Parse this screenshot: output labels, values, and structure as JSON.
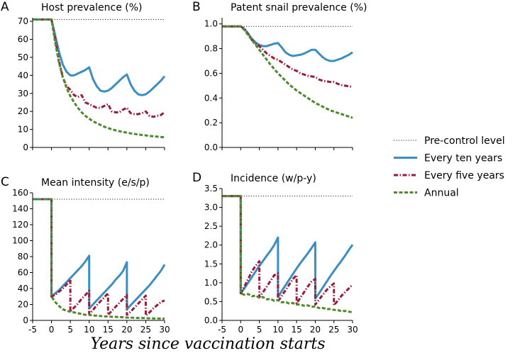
{
  "figure": {
    "xlabel": "Years since vaccination starts",
    "legend": [
      {
        "label": "Pre-control level",
        "style": "dotted",
        "color": "#222222"
      },
      {
        "label": "Every ten years",
        "style": "solid",
        "color": "#3a8fc2"
      },
      {
        "label": "Every five years",
        "style": "dashdot",
        "color": "#9b1b3c"
      },
      {
        "label": "Annual",
        "style": "dashed",
        "color": "#4f8a2a"
      }
    ],
    "legend_position": "center-right"
  },
  "chart_data": [
    {
      "type": "line",
      "letter": "A",
      "title": "Host prevalence (%)",
      "xlim": [
        -5,
        30
      ],
      "ylim": [
        0,
        72
      ],
      "yticks": [
        0,
        10,
        20,
        30,
        40,
        50,
        60,
        70
      ],
      "ytick_labels": [
        "0",
        "10",
        "20",
        "30",
        "40",
        "50",
        "60",
        "70"
      ],
      "baseline": 71,
      "series": [
        {
          "name": "Every ten years",
          "x": [
            -5,
            0,
            1,
            2,
            3,
            4,
            5,
            6,
            7,
            8,
            9,
            10,
            11,
            12,
            13,
            14,
            15,
            16,
            17,
            18,
            19,
            20,
            21,
            22,
            23,
            24,
            25,
            26,
            27,
            28,
            29,
            30
          ],
          "values": [
            71,
            71,
            62,
            53,
            46,
            42,
            40,
            40,
            41,
            42,
            43,
            44.5,
            38,
            34,
            31.5,
            31,
            31.5,
            33,
            35,
            37,
            39,
            40.5,
            35,
            31.5,
            29.5,
            29,
            29.5,
            31,
            33,
            35,
            37,
            39.5
          ]
        },
        {
          "name": "Every five years",
          "x": [
            -5,
            0,
            1,
            2,
            3,
            4,
            5,
            6,
            7,
            8,
            9,
            10,
            11,
            12,
            13,
            14,
            15,
            16,
            17,
            18,
            19,
            20,
            21,
            22,
            23,
            24,
            25,
            26,
            27,
            28,
            29,
            30
          ],
          "values": [
            71,
            71,
            60,
            48,
            39,
            34,
            32,
            29,
            28,
            29,
            25,
            24,
            23,
            22,
            22,
            23,
            24,
            20,
            19.5,
            19.5,
            21,
            22,
            19,
            18.5,
            18.5,
            19,
            20,
            17.5,
            17,
            17.5,
            18,
            19.5
          ]
        },
        {
          "name": "Annual",
          "x": [
            -5,
            0,
            1,
            2,
            3,
            4,
            5,
            6,
            7,
            8,
            9,
            10,
            11,
            12,
            13,
            14,
            15,
            16,
            17,
            18,
            19,
            20,
            21,
            22,
            23,
            24,
            25,
            26,
            27,
            28,
            29,
            30
          ],
          "values": [
            71,
            71,
            58,
            47,
            39,
            33,
            28.5,
            25,
            22,
            19.5,
            17.5,
            16,
            14.5,
            13.5,
            12.5,
            11.5,
            10.8,
            10,
            9.5,
            9,
            8.6,
            8.2,
            7.8,
            7.5,
            7.2,
            6.9,
            6.7,
            6.4,
            6.2,
            6,
            5.8,
            5.6
          ]
        }
      ]
    },
    {
      "type": "line",
      "letter": "B",
      "title": "Patent snail prevalence (%)",
      "xlim": [
        -5,
        30
      ],
      "ylim": [
        0,
        1.05
      ],
      "yticks": [
        0,
        0.2,
        0.4,
        0.6,
        0.8,
        1.0
      ],
      "ytick_labels": [
        "0.0",
        "0.2",
        "0.4",
        "0.6",
        "0.8",
        "1.0"
      ],
      "baseline": 0.98,
      "series": [
        {
          "name": "Every ten years",
          "x": [
            -5,
            0,
            1,
            2,
            3,
            4,
            5,
            6,
            7,
            8,
            9,
            10,
            11,
            12,
            13,
            14,
            15,
            16,
            17,
            18,
            19,
            20,
            21,
            22,
            23,
            24,
            25,
            26,
            27,
            28,
            29,
            30
          ],
          "values": [
            0.98,
            0.98,
            0.96,
            0.92,
            0.88,
            0.85,
            0.83,
            0.82,
            0.82,
            0.83,
            0.84,
            0.845,
            0.81,
            0.77,
            0.75,
            0.74,
            0.745,
            0.75,
            0.76,
            0.775,
            0.79,
            0.79,
            0.76,
            0.73,
            0.71,
            0.7,
            0.7,
            0.71,
            0.72,
            0.735,
            0.75,
            0.77
          ]
        },
        {
          "name": "Every five years",
          "x": [
            -5,
            0,
            1,
            2,
            3,
            4,
            5,
            6,
            7,
            8,
            9,
            10,
            11,
            12,
            13,
            14,
            15,
            16,
            17,
            18,
            19,
            20,
            21,
            22,
            23,
            24,
            25,
            26,
            27,
            28,
            29,
            30
          ],
          "values": [
            0.98,
            0.98,
            0.96,
            0.92,
            0.87,
            0.84,
            0.82,
            0.79,
            0.76,
            0.74,
            0.72,
            0.71,
            0.69,
            0.67,
            0.65,
            0.63,
            0.62,
            0.6,
            0.59,
            0.58,
            0.575,
            0.57,
            0.55,
            0.54,
            0.535,
            0.53,
            0.53,
            0.515,
            0.505,
            0.5,
            0.495,
            0.49
          ]
        },
        {
          "name": "Annual",
          "x": [
            -5,
            0,
            1,
            2,
            3,
            4,
            5,
            6,
            7,
            8,
            9,
            10,
            11,
            12,
            13,
            14,
            15,
            16,
            17,
            18,
            19,
            20,
            21,
            22,
            23,
            24,
            25,
            26,
            27,
            28,
            29,
            30
          ],
          "values": [
            0.98,
            0.98,
            0.95,
            0.91,
            0.87,
            0.83,
            0.79,
            0.75,
            0.71,
            0.67,
            0.635,
            0.6,
            0.57,
            0.54,
            0.51,
            0.485,
            0.46,
            0.44,
            0.42,
            0.4,
            0.38,
            0.36,
            0.345,
            0.33,
            0.315,
            0.3,
            0.29,
            0.28,
            0.27,
            0.26,
            0.25,
            0.24
          ]
        }
      ]
    },
    {
      "type": "line",
      "letter": "C",
      "title": "Mean intensity (e/s/p)",
      "xlim": [
        -5,
        30
      ],
      "ylim": [
        0,
        160
      ],
      "yticks": [
        0,
        20,
        40,
        60,
        80,
        100,
        120,
        140,
        160
      ],
      "ytick_labels": [
        "0",
        "20",
        "40",
        "60",
        "80",
        "100",
        "120",
        "140",
        "160"
      ],
      "baseline": 152,
      "series": [
        {
          "name": "Every ten years",
          "x": [
            -5,
            0,
            0,
            1,
            2,
            3,
            4,
            5,
            6,
            7,
            8,
            9,
            10,
            10,
            11,
            12,
            13,
            14,
            15,
            16,
            17,
            18,
            19,
            20,
            20,
            21,
            22,
            23,
            24,
            25,
            26,
            27,
            28,
            29,
            30
          ],
          "values": [
            152,
            152,
            30,
            34,
            38,
            43,
            48,
            53,
            58,
            63,
            68,
            74,
            81,
            15,
            20,
            25,
            30,
            35,
            40,
            45,
            51,
            56,
            62,
            73,
            14,
            19,
            24,
            29,
            34,
            39,
            44,
            50,
            56,
            62,
            70
          ]
        },
        {
          "name": "Every five years",
          "x": [
            -5,
            0,
            0,
            1,
            2,
            3,
            4,
            5,
            5,
            6,
            7,
            8,
            9,
            10,
            10,
            11,
            12,
            13,
            14,
            15,
            15,
            16,
            17,
            18,
            19,
            20,
            20,
            21,
            22,
            23,
            24,
            25,
            25,
            26,
            27,
            28,
            29,
            30
          ],
          "values": [
            152,
            152,
            30,
            32,
            36,
            40,
            45,
            51,
            11,
            16,
            21,
            27,
            32,
            37,
            8,
            13,
            19,
            24,
            29,
            34,
            7,
            12,
            17,
            22,
            27,
            32,
            7,
            11,
            16,
            21,
            26,
            31,
            6,
            10,
            15,
            19,
            23,
            25
          ]
        },
        {
          "name": "Annual",
          "x": [
            -5,
            0,
            0,
            1,
            2,
            3,
            4,
            5,
            6,
            7,
            8,
            9,
            10,
            11,
            12,
            13,
            14,
            15,
            16,
            17,
            18,
            19,
            20,
            21,
            22,
            23,
            24,
            25,
            26,
            27,
            28,
            29,
            30
          ],
          "values": [
            152,
            152,
            30,
            23,
            18,
            14,
            12,
            11,
            10,
            9,
            8,
            7,
            7,
            6,
            6,
            5.5,
            5,
            5,
            4.5,
            4.5,
            4,
            4,
            3.5,
            3.5,
            3.2,
            3,
            3,
            2.8,
            2.6,
            2.5,
            2.4,
            2.3,
            2.2
          ]
        }
      ]
    },
    {
      "type": "line",
      "letter": "D",
      "title": "Incidence (w/p-y)",
      "xlim": [
        -5,
        30
      ],
      "ylim": [
        0,
        3.5
      ],
      "yticks": [
        0,
        0.5,
        1.0,
        1.5,
        2.0,
        2.5,
        3.0,
        3.5
      ],
      "ytick_labels": [
        "0.0",
        "0.5",
        "1.0",
        "1.5",
        "2.0",
        "2.5",
        "3.0",
        "3.5"
      ],
      "baseline": 3.3,
      "series": [
        {
          "name": "Every ten years",
          "x": [
            -5,
            0,
            0,
            1,
            2,
            3,
            4,
            5,
            6,
            7,
            8,
            9,
            10,
            10,
            11,
            12,
            13,
            14,
            15,
            16,
            17,
            18,
            19,
            20,
            20,
            21,
            22,
            23,
            24,
            25,
            26,
            27,
            28,
            29,
            30
          ],
          "values": [
            3.3,
            3.3,
            0.72,
            0.85,
            1.0,
            1.15,
            1.3,
            1.45,
            1.58,
            1.72,
            1.85,
            2.0,
            2.2,
            0.62,
            0.78,
            0.93,
            1.08,
            1.23,
            1.38,
            1.52,
            1.65,
            1.78,
            1.92,
            2.07,
            0.58,
            0.72,
            0.87,
            1.02,
            1.17,
            1.31,
            1.45,
            1.58,
            1.72,
            1.87,
            2.01
          ]
        },
        {
          "name": "Every five years",
          "x": [
            -5,
            0,
            0,
            1,
            2,
            3,
            4,
            5,
            5,
            6,
            7,
            8,
            9,
            10,
            10,
            11,
            12,
            13,
            14,
            15,
            15,
            16,
            17,
            18,
            19,
            20,
            20,
            21,
            22,
            23,
            24,
            25,
            25,
            26,
            27,
            28,
            29,
            30
          ],
          "values": [
            3.3,
            3.3,
            0.72,
            0.9,
            1.1,
            1.3,
            1.45,
            1.57,
            0.62,
            0.75,
            0.9,
            1.05,
            1.2,
            1.25,
            0.5,
            0.65,
            0.8,
            0.95,
            1.1,
            1.2,
            0.45,
            0.6,
            0.75,
            0.9,
            1.03,
            1.1,
            0.42,
            0.55,
            0.68,
            0.8,
            0.9,
            0.98,
            0.4,
            0.52,
            0.65,
            0.75,
            0.85,
            0.95
          ]
        },
        {
          "name": "Annual",
          "x": [
            -5,
            0,
            0,
            1,
            2,
            3,
            4,
            5,
            6,
            7,
            8,
            9,
            10,
            11,
            12,
            13,
            14,
            15,
            16,
            17,
            18,
            19,
            20,
            21,
            22,
            23,
            24,
            25,
            26,
            27,
            28,
            29,
            30
          ],
          "values": [
            3.3,
            3.3,
            0.72,
            0.68,
            0.7,
            0.64,
            0.66,
            0.6,
            0.62,
            0.56,
            0.57,
            0.52,
            0.54,
            0.48,
            0.49,
            0.45,
            0.46,
            0.42,
            0.42,
            0.39,
            0.4,
            0.36,
            0.37,
            0.33,
            0.33,
            0.3,
            0.3,
            0.28,
            0.27,
            0.25,
            0.25,
            0.23,
            0.22
          ]
        }
      ]
    }
  ],
  "x_ticks": [
    -5,
    0,
    5,
    10,
    15,
    20,
    25,
    30
  ],
  "x_tick_labels": [
    "-5",
    "0",
    "5",
    "10",
    "15",
    "20",
    "25",
    "30"
  ]
}
